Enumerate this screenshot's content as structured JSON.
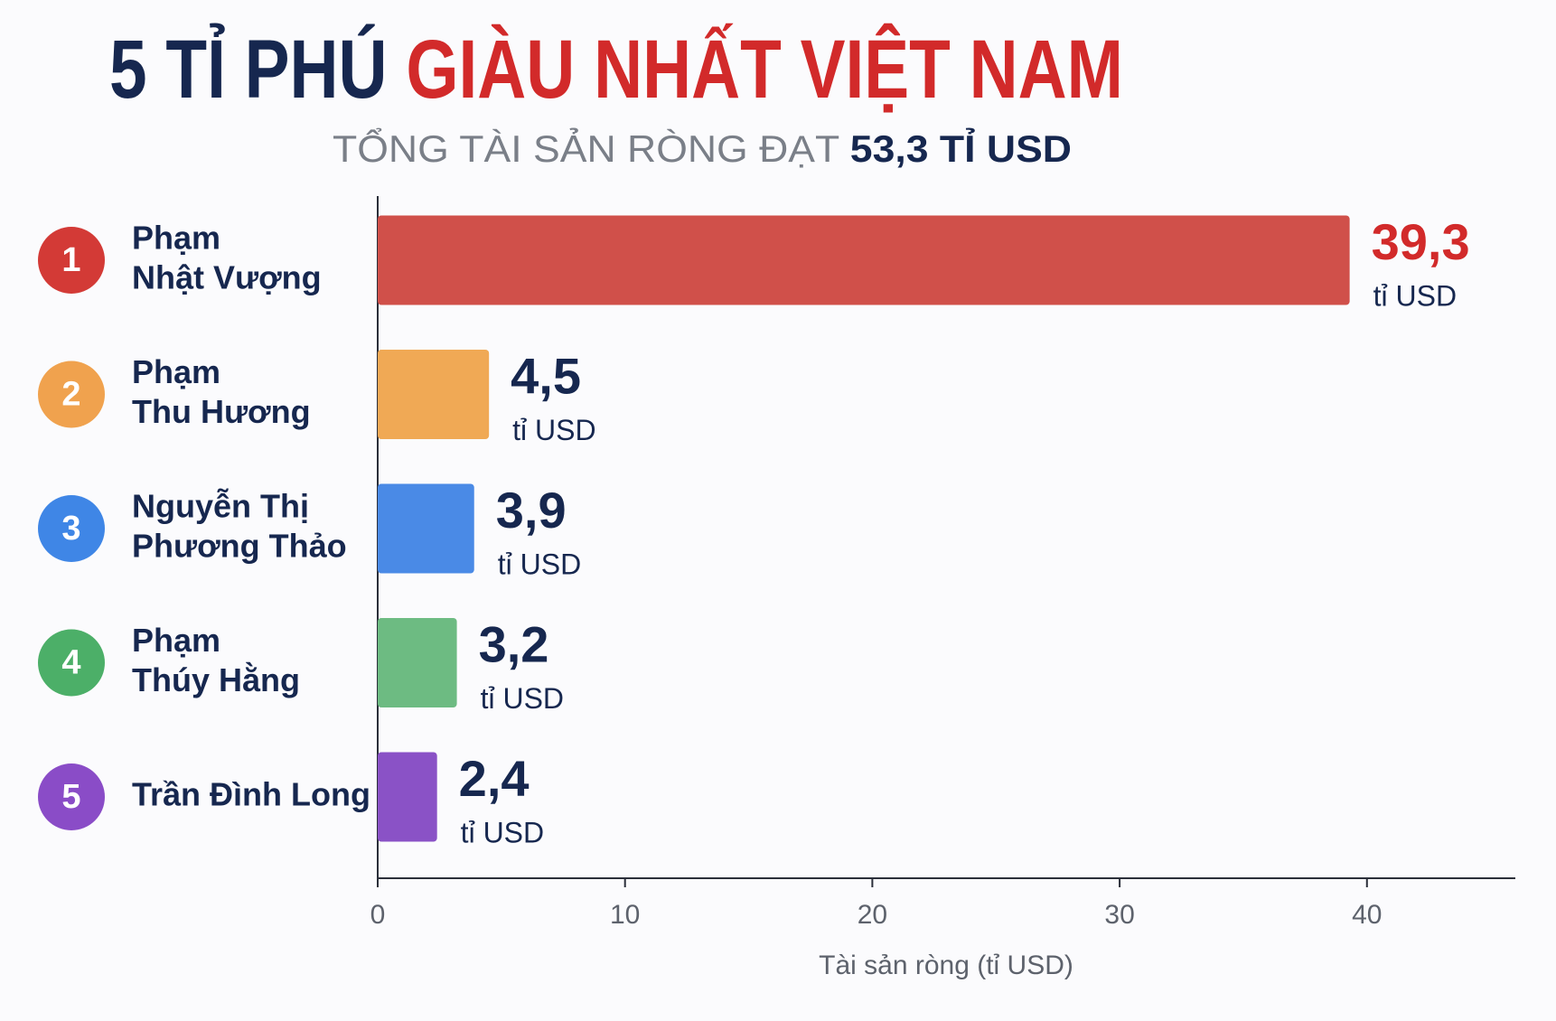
{
  "chart_data": {
    "type": "bar",
    "orientation": "horizontal",
    "title_parts": [
      "5 TỈ PHÚ",
      "GIÀU NHẤT VIỆT NAM"
    ],
    "title_colors": [
      "#16274f",
      "#d22a2a"
    ],
    "subtitle_parts": [
      "TỔNG TÀI SẢN RÒNG ĐẠT",
      "53,3 TỈ USD"
    ],
    "subtitle_colors": [
      "#7a7f88",
      "#16274f"
    ],
    "ranks": [
      1,
      2,
      3,
      4,
      5
    ],
    "categories": [
      [
        "Phạm",
        "Nhật Vượng"
      ],
      [
        "Phạm",
        "Thu Hương"
      ],
      [
        "Nguyễn Thị",
        "Phương Thảo"
      ],
      [
        "Phạm",
        "Thúy Hằng"
      ],
      [
        "Trần Đình Long"
      ]
    ],
    "values": [
      39.3,
      4.5,
      3.9,
      3.2,
      2.4
    ],
    "value_labels": [
      "39,3",
      "4,5",
      "3,9",
      "3,2",
      "2,4"
    ],
    "value_unit": "tỉ USD",
    "colors": [
      "#d0504a",
      "#f0a955",
      "#4a8ae6",
      "#6dbb82",
      "#8a52c6"
    ],
    "rank_colors": [
      "#d33a36",
      "#f0a24e",
      "#3f86e6",
      "#4caf68",
      "#8a4cc7"
    ],
    "value_label_colors": [
      "#d22a2a",
      "#16274f",
      "#16274f",
      "#16274f",
      "#16274f"
    ],
    "x_label": "Tài sản ròng (tỉ USD)",
    "xlim": [
      0,
      46
    ],
    "xticks": [
      0,
      10,
      20,
      30,
      40
    ]
  }
}
